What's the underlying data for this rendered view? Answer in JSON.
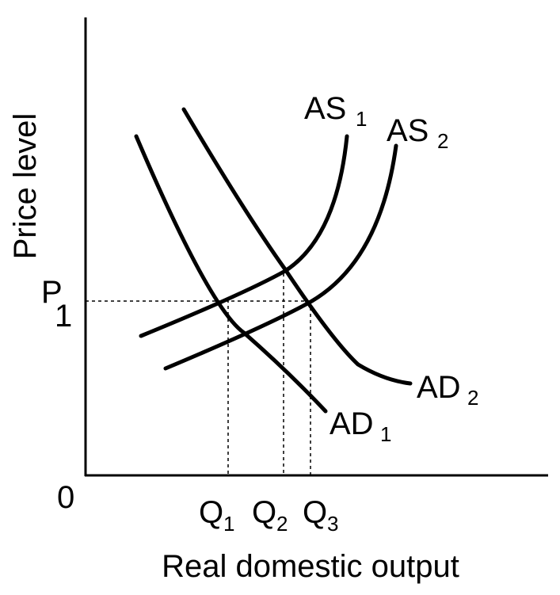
{
  "chart_data": {
    "type": "line",
    "title": "",
    "xlabel": "Real domestic output",
    "ylabel": "Price level",
    "origin_label": "0",
    "price_label": {
      "main": "P",
      "sub": "1"
    },
    "quantity_labels": [
      {
        "main": "Q",
        "sub": "1"
      },
      {
        "main": "Q",
        "sub": "2"
      },
      {
        "main": "Q",
        "sub": "3"
      }
    ],
    "series": [
      {
        "main": "AD",
        "sub": "1"
      },
      {
        "main": "AD",
        "sub": "2"
      },
      {
        "main": "AS",
        "sub": "1"
      },
      {
        "main": "AS",
        "sub": "2"
      }
    ],
    "grid": false,
    "legend": "none",
    "color": "#000000"
  }
}
